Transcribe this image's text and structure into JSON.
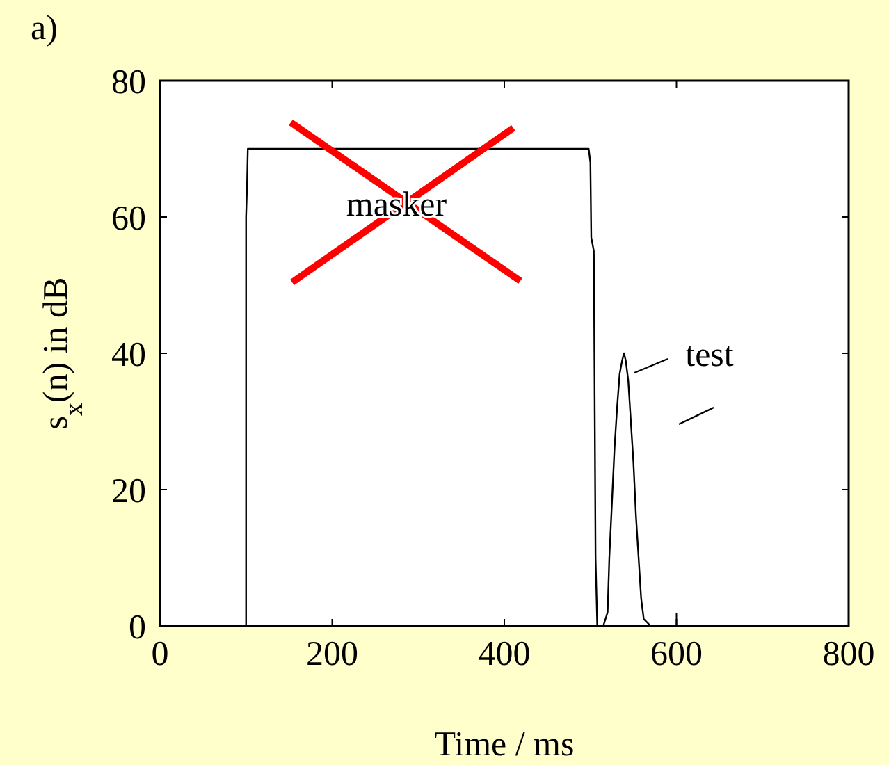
{
  "chart_data": {
    "type": "line",
    "xlabel": "Time / ms",
    "ylabel": "s$_{x}$(n) in dB",
    "xlim": [
      0,
      800
    ],
    "xticks": [
      0,
      200,
      400,
      600,
      800
    ],
    "ylim": [
      0,
      80
    ],
    "yticks": [
      0,
      20,
      40,
      60,
      80
    ],
    "grid": false,
    "marker": "none",
    "line_style": "solid",
    "series": [
      {
        "color": "#000000",
        "x": [
          90,
          100,
          100,
          101,
          102,
          498,
          500,
          501,
          504,
          506,
          508,
          515
        ],
        "values": [
          0,
          0,
          60,
          64,
          70,
          70,
          68,
          57,
          55,
          10,
          0,
          0
        ]
      },
      {
        "color": "#000000",
        "x": [
          515,
          520,
          522,
          525,
          528,
          531,
          534,
          537,
          539,
          541,
          544,
          547,
          550,
          553,
          556,
          559,
          562,
          570
        ],
        "values": [
          0,
          2,
          10,
          18,
          26,
          32,
          37,
          39,
          40,
          39,
          36,
          30,
          24,
          16,
          10,
          4,
          1,
          0
        ]
      }
    ],
    "annotations": [
      "a)",
      "masker",
      "test"
    ]
  }
}
